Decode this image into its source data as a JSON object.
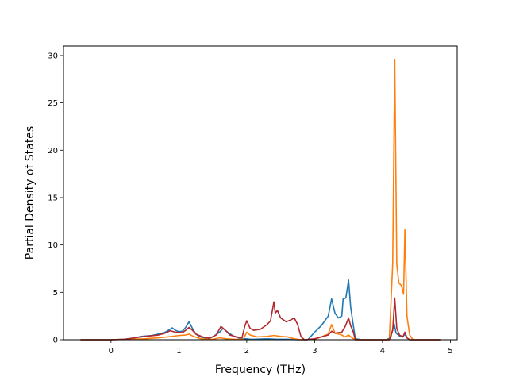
{
  "chart_data": {
    "type": "line",
    "title": "",
    "xlabel": "Frequency (THz)",
    "ylabel": "Partial Density of States",
    "xlim": [
      -0.7,
      5.1
    ],
    "ylim": [
      0,
      31
    ],
    "xticks": [
      0,
      1,
      2,
      3,
      4,
      5
    ],
    "yticks": [
      0,
      5,
      10,
      15,
      20,
      25,
      30
    ],
    "grid": false,
    "legend": "none",
    "series": [
      {
        "color": "#1f77b4",
        "points": [
          [
            -0.45,
            0
          ],
          [
            0.0,
            0
          ],
          [
            0.2,
            0.05
          ],
          [
            0.35,
            0.2
          ],
          [
            0.45,
            0.35
          ],
          [
            0.6,
            0.45
          ],
          [
            0.7,
            0.6
          ],
          [
            0.8,
            0.8
          ],
          [
            0.87,
            1.1
          ],
          [
            0.9,
            1.25
          ],
          [
            0.95,
            1.0
          ],
          [
            1.0,
            0.85
          ],
          [
            1.05,
            0.9
          ],
          [
            1.1,
            1.3
          ],
          [
            1.15,
            1.9
          ],
          [
            1.2,
            1.2
          ],
          [
            1.25,
            0.6
          ],
          [
            1.3,
            0.35
          ],
          [
            1.4,
            0.15
          ],
          [
            1.5,
            0.3
          ],
          [
            1.6,
            0.8
          ],
          [
            1.65,
            1.2
          ],
          [
            1.7,
            0.9
          ],
          [
            1.8,
            0.4
          ],
          [
            1.9,
            0.15
          ],
          [
            1.95,
            0.1
          ],
          [
            2.0,
            0.1
          ],
          [
            2.05,
            0.05
          ],
          [
            2.1,
            0.05
          ],
          [
            2.3,
            0.1
          ],
          [
            2.45,
            0.05
          ],
          [
            2.6,
            0.05
          ],
          [
            2.75,
            0
          ],
          [
            2.9,
            0
          ],
          [
            3.0,
            0.8
          ],
          [
            3.1,
            1.5
          ],
          [
            3.2,
            2.5
          ],
          [
            3.25,
            4.3
          ],
          [
            3.3,
            2.8
          ],
          [
            3.35,
            2.3
          ],
          [
            3.4,
            2.5
          ],
          [
            3.42,
            4.3
          ],
          [
            3.46,
            4.4
          ],
          [
            3.5,
            6.3
          ],
          [
            3.53,
            3.5
          ],
          [
            3.57,
            1.5
          ],
          [
            3.6,
            0.1
          ],
          [
            3.7,
            0
          ],
          [
            4.05,
            0
          ],
          [
            4.12,
            0.2
          ],
          [
            4.17,
            1.7
          ],
          [
            4.2,
            0.7
          ],
          [
            4.25,
            0.4
          ],
          [
            4.3,
            0.3
          ],
          [
            4.33,
            0.6
          ],
          [
            4.36,
            0.2
          ],
          [
            4.4,
            0
          ],
          [
            4.85,
            0
          ]
        ]
      },
      {
        "color": "#ff7f0e",
        "points": [
          [
            -0.45,
            0
          ],
          [
            0.0,
            0
          ],
          [
            0.3,
            0.05
          ],
          [
            0.5,
            0.1
          ],
          [
            0.7,
            0.2
          ],
          [
            0.9,
            0.35
          ],
          [
            1.0,
            0.45
          ],
          [
            1.1,
            0.5
          ],
          [
            1.15,
            0.6
          ],
          [
            1.2,
            0.4
          ],
          [
            1.3,
            0.15
          ],
          [
            1.4,
            0.05
          ],
          [
            1.5,
            0.05
          ],
          [
            1.6,
            0.2
          ],
          [
            1.7,
            0.1
          ],
          [
            1.8,
            0.05
          ],
          [
            1.95,
            0.05
          ],
          [
            2.0,
            0.8
          ],
          [
            2.05,
            0.5
          ],
          [
            2.15,
            0.3
          ],
          [
            2.3,
            0.35
          ],
          [
            2.4,
            0.45
          ],
          [
            2.5,
            0.35
          ],
          [
            2.6,
            0.3
          ],
          [
            2.7,
            0.1
          ],
          [
            2.8,
            0
          ],
          [
            3.0,
            0.05
          ],
          [
            3.1,
            0.3
          ],
          [
            3.2,
            0.6
          ],
          [
            3.25,
            1.6
          ],
          [
            3.3,
            0.7
          ],
          [
            3.4,
            0.5
          ],
          [
            3.45,
            0.3
          ],
          [
            3.5,
            0.5
          ],
          [
            3.55,
            0.2
          ],
          [
            3.6,
            0
          ],
          [
            4.1,
            0
          ],
          [
            4.15,
            8.0
          ],
          [
            4.18,
            29.6
          ],
          [
            4.21,
            8.0
          ],
          [
            4.24,
            6.0
          ],
          [
            4.28,
            5.7
          ],
          [
            4.31,
            4.8
          ],
          [
            4.33,
            11.6
          ],
          [
            4.36,
            2.5
          ],
          [
            4.4,
            0.5
          ],
          [
            4.45,
            0
          ],
          [
            4.85,
            0
          ]
        ]
      },
      {
        "color": "#b2282d",
        "points": [
          [
            -0.45,
            0
          ],
          [
            0.0,
            0
          ],
          [
            0.2,
            0.05
          ],
          [
            0.35,
            0.2
          ],
          [
            0.5,
            0.35
          ],
          [
            0.7,
            0.5
          ],
          [
            0.8,
            0.7
          ],
          [
            0.87,
            0.95
          ],
          [
            0.95,
            0.8
          ],
          [
            1.05,
            0.75
          ],
          [
            1.1,
            1.0
          ],
          [
            1.15,
            1.3
          ],
          [
            1.2,
            1.0
          ],
          [
            1.25,
            0.6
          ],
          [
            1.35,
            0.3
          ],
          [
            1.45,
            0.15
          ],
          [
            1.55,
            0.5
          ],
          [
            1.62,
            1.4
          ],
          [
            1.7,
            0.9
          ],
          [
            1.75,
            0.5
          ],
          [
            1.85,
            0.3
          ],
          [
            1.93,
            0.2
          ],
          [
            1.97,
            1.4
          ],
          [
            2.0,
            2.0
          ],
          [
            2.05,
            1.2
          ],
          [
            2.1,
            1.0
          ],
          [
            2.2,
            1.1
          ],
          [
            2.3,
            1.6
          ],
          [
            2.35,
            2.0
          ],
          [
            2.4,
            4.0
          ],
          [
            2.42,
            2.8
          ],
          [
            2.45,
            3.1
          ],
          [
            2.5,
            2.3
          ],
          [
            2.58,
            1.9
          ],
          [
            2.65,
            2.1
          ],
          [
            2.7,
            2.3
          ],
          [
            2.75,
            1.6
          ],
          [
            2.8,
            0.3
          ],
          [
            2.85,
            0
          ],
          [
            3.0,
            0.1
          ],
          [
            3.1,
            0.3
          ],
          [
            3.2,
            0.5
          ],
          [
            3.25,
            0.9
          ],
          [
            3.3,
            0.7
          ],
          [
            3.4,
            0.8
          ],
          [
            3.45,
            1.4
          ],
          [
            3.5,
            2.3
          ],
          [
            3.53,
            1.5
          ],
          [
            3.57,
            0.8
          ],
          [
            3.6,
            0
          ],
          [
            4.1,
            0
          ],
          [
            4.15,
            1.0
          ],
          [
            4.18,
            4.4
          ],
          [
            4.21,
            1.2
          ],
          [
            4.25,
            0.5
          ],
          [
            4.3,
            0.3
          ],
          [
            4.33,
            0.8
          ],
          [
            4.36,
            0.2
          ],
          [
            4.4,
            0
          ],
          [
            4.85,
            0
          ]
        ]
      }
    ]
  }
}
